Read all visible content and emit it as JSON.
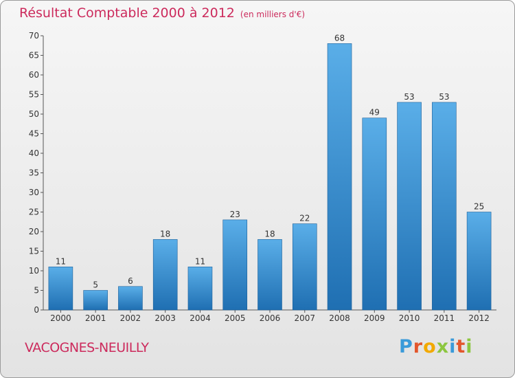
{
  "title": "Résultat Comptable 2000 à 2012",
  "subtitle": "(en milliers d'€)",
  "commune": "VACOGNES-NEUILLY",
  "brand": {
    "letters": [
      "P",
      "r",
      "o",
      "x",
      "i",
      "t",
      "i"
    ],
    "colors": [
      "#3a9ad9",
      "#e2562c",
      "#f2a900",
      "#8cc63f",
      "#3a9ad9",
      "#e2562c",
      "#8cc63f"
    ]
  },
  "colors": {
    "title": "#cc2a5c",
    "bar_light": "#5aaee8",
    "bar_dark": "#1f6fb2"
  },
  "chart_data": {
    "type": "bar",
    "categories": [
      "2000",
      "2001",
      "2002",
      "2003",
      "2004",
      "2005",
      "2006",
      "2007",
      "2008",
      "2009",
      "2010",
      "2011",
      "2012"
    ],
    "values": [
      11,
      5,
      6,
      18,
      11,
      23,
      18,
      22,
      68,
      49,
      53,
      53,
      25
    ],
    "title": "Résultat Comptable 2000 à 2012",
    "subtitle": "(en milliers d'€)",
    "xlabel": "",
    "ylabel": "",
    "ylim": [
      0,
      70
    ],
    "yticks": [
      0,
      5,
      10,
      15,
      20,
      25,
      30,
      35,
      40,
      45,
      50,
      55,
      60,
      65,
      70
    ],
    "grid": false,
    "data_labels": true
  }
}
